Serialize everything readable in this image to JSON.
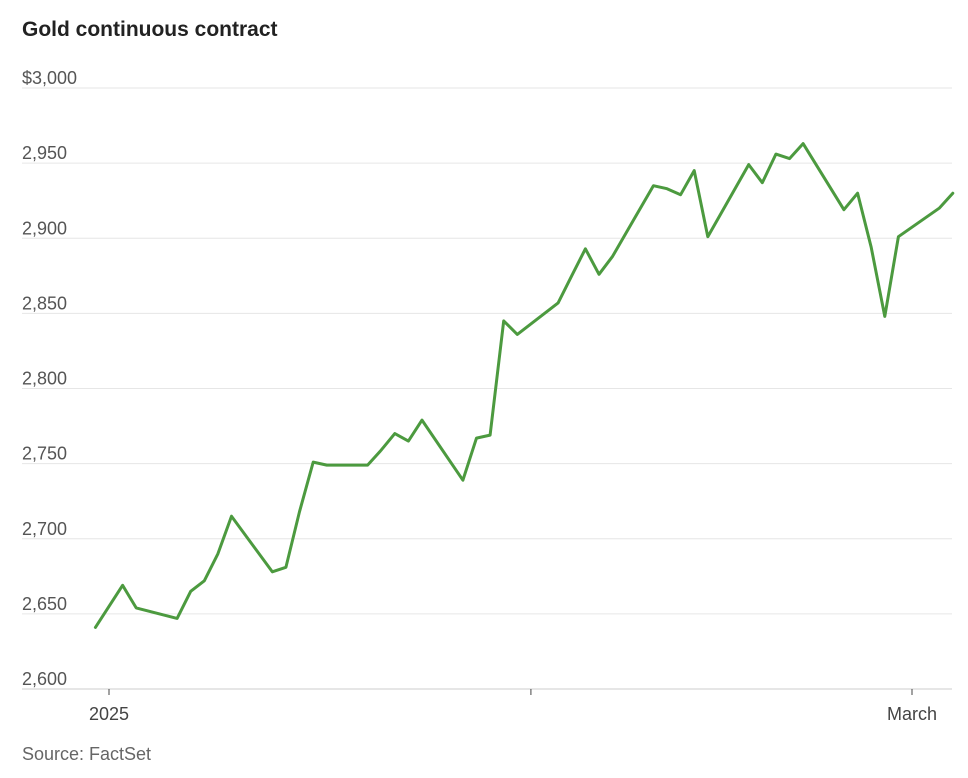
{
  "chart_data": {
    "type": "line",
    "title": "Gold continuous contract",
    "source": "Source: FactSet",
    "y_tick_labels": [
      "$3,000",
      "2,950",
      "2,900",
      "2,850",
      "2,800",
      "2,750",
      "2,700",
      "2,650",
      "2,600"
    ],
    "y_tick_values": [
      3000,
      2950,
      2900,
      2850,
      2800,
      2750,
      2700,
      2650,
      2600
    ],
    "ylim": [
      2600,
      3000
    ],
    "x_tick_labels": [
      "2025",
      "",
      "March"
    ],
    "x_tick_dates": [
      "2025-01-01",
      "2025-02-01",
      "2025-03-01"
    ],
    "grid": true,
    "line_color": "#4c9a3f",
    "series": [
      {
        "x": [
          "2024-12-31",
          "2025-01-02",
          "2025-01-03",
          "2025-01-06",
          "2025-01-07",
          "2025-01-08",
          "2025-01-09",
          "2025-01-10",
          "2025-01-13",
          "2025-01-14",
          "2025-01-15",
          "2025-01-16",
          "2025-01-17",
          "2025-01-20",
          "2025-01-21",
          "2025-01-22",
          "2025-01-23",
          "2025-01-24",
          "2025-01-27",
          "2025-01-28",
          "2025-01-29",
          "2025-01-30",
          "2025-01-31",
          "2025-02-03",
          "2025-02-04",
          "2025-02-05",
          "2025-02-06",
          "2025-02-07",
          "2025-02-10",
          "2025-02-11",
          "2025-02-12",
          "2025-02-13",
          "2025-02-14",
          "2025-02-17",
          "2025-02-18",
          "2025-02-19",
          "2025-02-20",
          "2025-02-21",
          "2025-02-24",
          "2025-02-25",
          "2025-02-26",
          "2025-02-27",
          "2025-02-28",
          "2025-03-03",
          "2025-03-04"
        ],
        "values": [
          2641,
          2669,
          2654,
          2647,
          2665,
          2672,
          2690,
          2715,
          2678,
          2681,
          2718,
          2751,
          2749,
          2749,
          2759,
          2770,
          2765,
          2779,
          2739,
          2767,
          2769,
          2845,
          2836,
          2857,
          2875,
          2893,
          2876,
          2888,
          2935,
          2933,
          2929,
          2945,
          2901,
          2949,
          2937,
          2956,
          2953,
          2963,
          2919,
          2930,
          2894,
          2848,
          2901,
          2920,
          2930
        ]
      }
    ]
  }
}
